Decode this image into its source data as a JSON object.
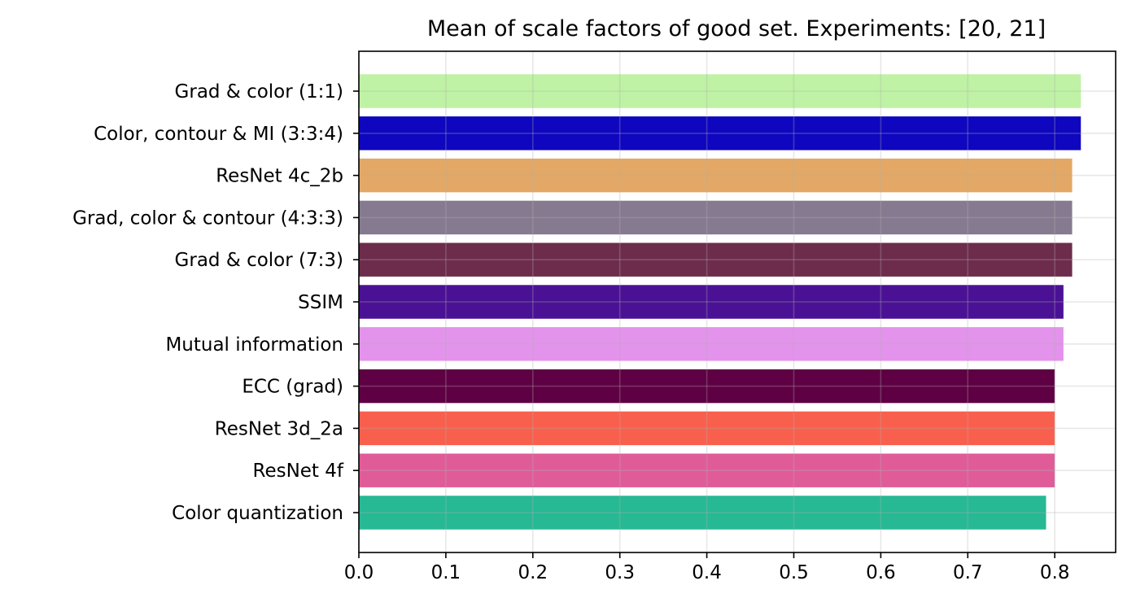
{
  "chart_data": {
    "type": "bar",
    "orientation": "horizontal",
    "title": "Mean of scale factors of good set. Experiments: [20, 21]",
    "xlabel": "",
    "ylabel": "",
    "xlim": [
      0.0,
      0.87
    ],
    "xticks": [
      0.0,
      0.1,
      0.2,
      0.3,
      0.4,
      0.5,
      0.6,
      0.7,
      0.8
    ],
    "xtick_labels": [
      "0.0",
      "0.1",
      "0.2",
      "0.3",
      "0.4",
      "0.5",
      "0.6",
      "0.7",
      "0.8"
    ],
    "grid": true,
    "categories": [
      "Grad & color (1:1)",
      "Color, contour & MI (3:3:4)",
      "ResNet 4c_2b",
      "Grad, color & contour (4:3:3)",
      "Grad & color (7:3)",
      "SSIM",
      "Mutual information",
      "ECC (grad)",
      "ResNet 3d_2a",
      "ResNet 4f",
      "Color quantization"
    ],
    "values": [
      0.83,
      0.83,
      0.82,
      0.82,
      0.82,
      0.81,
      0.81,
      0.8,
      0.8,
      0.8,
      0.79
    ],
    "colors": [
      "#bff2a4",
      "#0f06bf",
      "#e3a865",
      "#867a90",
      "#6d2c4c",
      "#4b1195",
      "#e393eb",
      "#5e0043",
      "#f95f4d",
      "#e05c98",
      "#27b993"
    ]
  }
}
